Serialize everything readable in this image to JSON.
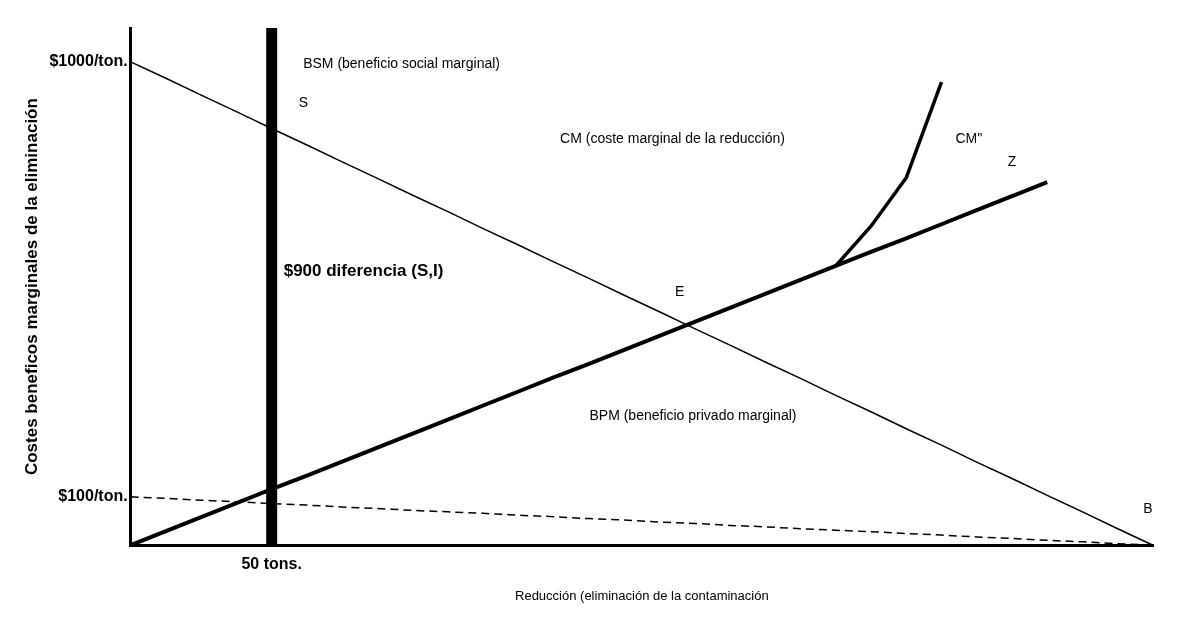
{
  "chart_data": {
    "type": "line",
    "xlabel": "Reducción (eliminación de la contaminación",
    "ylabel": "Costes beneficos marginales de la eliminación",
    "categories": [
      null,
      null,
      null,
      null,
      "50 tons.",
      null,
      null,
      null,
      null,
      null,
      null,
      null,
      null,
      null,
      null,
      null,
      null,
      null,
      null,
      null,
      null,
      null,
      null,
      null,
      null,
      null,
      null,
      null,
      null,
      null
    ],
    "ylim": [
      0,
      1070
    ],
    "yticks": [
      {
        "value": 100,
        "label": "$100/ton."
      },
      {
        "value": 1000,
        "label": "$1000/ton."
      }
    ],
    "grid": false,
    "marker": "none",
    "series": [
      {
        "color": "#000000",
        "values": [
          1000,
          966,
          931,
          897,
          862,
          828,
          793,
          759,
          724,
          690,
          655,
          621,
          586,
          552,
          517,
          483,
          448,
          414,
          379,
          345,
          310,
          276,
          241,
          207,
          172,
          138,
          103,
          69,
          34,
          0
        ]
      },
      {
        "color": "#000000",
        "line_style": "dashed",
        "values": [
          100,
          97,
          93,
          90,
          86,
          83,
          79,
          76,
          72,
          69,
          66,
          62,
          59,
          55,
          52,
          48,
          45,
          41,
          38,
          34,
          31,
          28,
          24,
          21,
          17,
          14,
          10,
          7,
          3,
          0
        ]
      },
      {
        "color": "#000000",
        "values": [
          0,
          29,
          58,
          87,
          116,
          144,
          173,
          202,
          231,
          260,
          289,
          318,
          347,
          375,
          404,
          433,
          462,
          491,
          520,
          549,
          578,
          607,
          635,
          664,
          693,
          722,
          751,
          null,
          null,
          null
        ]
      },
      {
        "color": "#000000",
        "values": [
          null,
          null,
          null,
          null,
          null,
          null,
          null,
          null,
          null,
          null,
          null,
          null,
          null,
          null,
          null,
          null,
          null,
          null,
          null,
          null,
          578,
          660,
          760,
          958,
          null,
          null,
          null,
          null,
          null,
          null
        ]
      }
    ],
    "ref_lines": [
      {
        "axis": "x",
        "value": "50 tons.",
        "label": "$900 diferencia (S,I)",
        "color": "#000000"
      }
    ],
    "annotations": [
      "BSM (beneficio social marginal)",
      "CM (coste marginal de la reducción)",
      "BPM (beneficio privado marginal)",
      "CM''",
      "S",
      "E",
      "Z",
      "B"
    ]
  }
}
